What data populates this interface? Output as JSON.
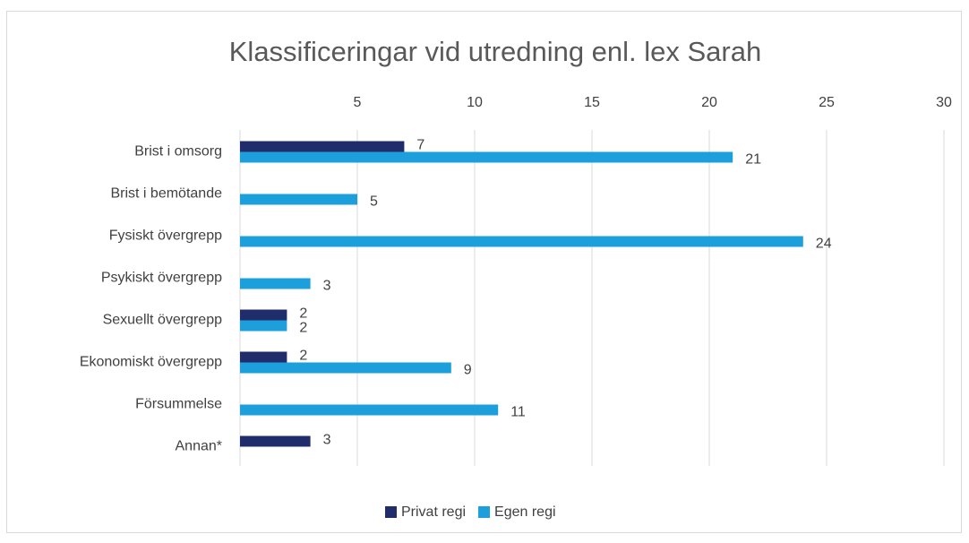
{
  "chart_data": {
    "type": "barh",
    "title": "Klassificeringar vid utredning enl. lex Sarah",
    "categories": [
      "Brist i omsorg",
      "Brist i bemötande",
      "Fysiskt övergrepp",
      "Psykiskt övergrepp",
      "Sexuellt övergrepp",
      "Ekonomiskt övergrepp",
      "Försummelse",
      "Annan*"
    ],
    "series": [
      {
        "name": "Privat regi",
        "color": "#212c6b",
        "values": [
          7,
          null,
          null,
          null,
          2,
          2,
          null,
          3
        ]
      },
      {
        "name": "Egen regi",
        "color": "#1d9fdc",
        "values": [
          21,
          5,
          24,
          3,
          2,
          9,
          11,
          null
        ]
      }
    ],
    "xlim": [
      0,
      30
    ],
    "xticks": [
      5,
      10,
      15,
      20,
      25,
      30
    ],
    "grid": true,
    "legend": "bottom"
  }
}
